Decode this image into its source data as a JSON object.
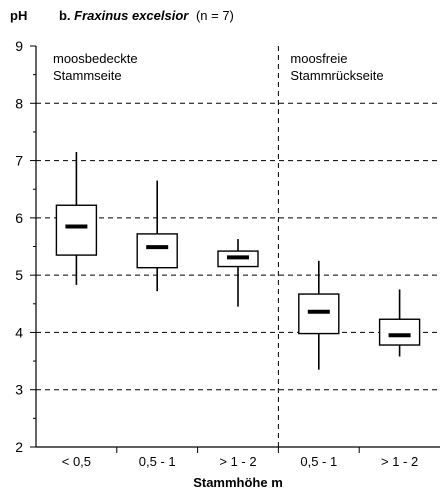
{
  "chart_data": {
    "type": "box",
    "ylabel": "pH",
    "subtitle_prefix": "b.",
    "species": "Fraxinus excelsior",
    "sample": "(n = 7)",
    "xlabel": "Stammhöhe m",
    "ylim": [
      2,
      9
    ],
    "yticks": [
      2,
      3,
      4,
      5,
      6,
      7,
      8,
      9
    ],
    "grid": "horizontal dashed",
    "groups": [
      {
        "label_lines": [
          "moosbedeckte",
          "Stammseite"
        ]
      },
      {
        "label_lines": [
          "moosfreie",
          "Stammrückseite"
        ]
      }
    ],
    "boxes": [
      {
        "category": "< 0,5",
        "group": 0,
        "min": 4.83,
        "q1": 5.35,
        "median": 5.85,
        "q3": 6.22,
        "max": 7.15
      },
      {
        "category": "0,5 - 1",
        "group": 0,
        "min": 4.72,
        "q1": 5.13,
        "median": 5.49,
        "q3": 5.72,
        "max": 6.65
      },
      {
        "category": "> 1 - 2",
        "group": 0,
        "min": 4.45,
        "q1": 5.15,
        "median": 5.31,
        "q3": 5.42,
        "max": 5.63
      },
      {
        "category": "0,5 - 1",
        "group": 1,
        "min": 3.35,
        "q1": 3.98,
        "median": 4.36,
        "q3": 4.67,
        "max": 5.25
      },
      {
        "category": "> 1 - 2",
        "group": 1,
        "min": 3.58,
        "q1": 3.78,
        "median": 3.95,
        "q3": 4.23,
        "max": 4.75
      }
    ]
  }
}
